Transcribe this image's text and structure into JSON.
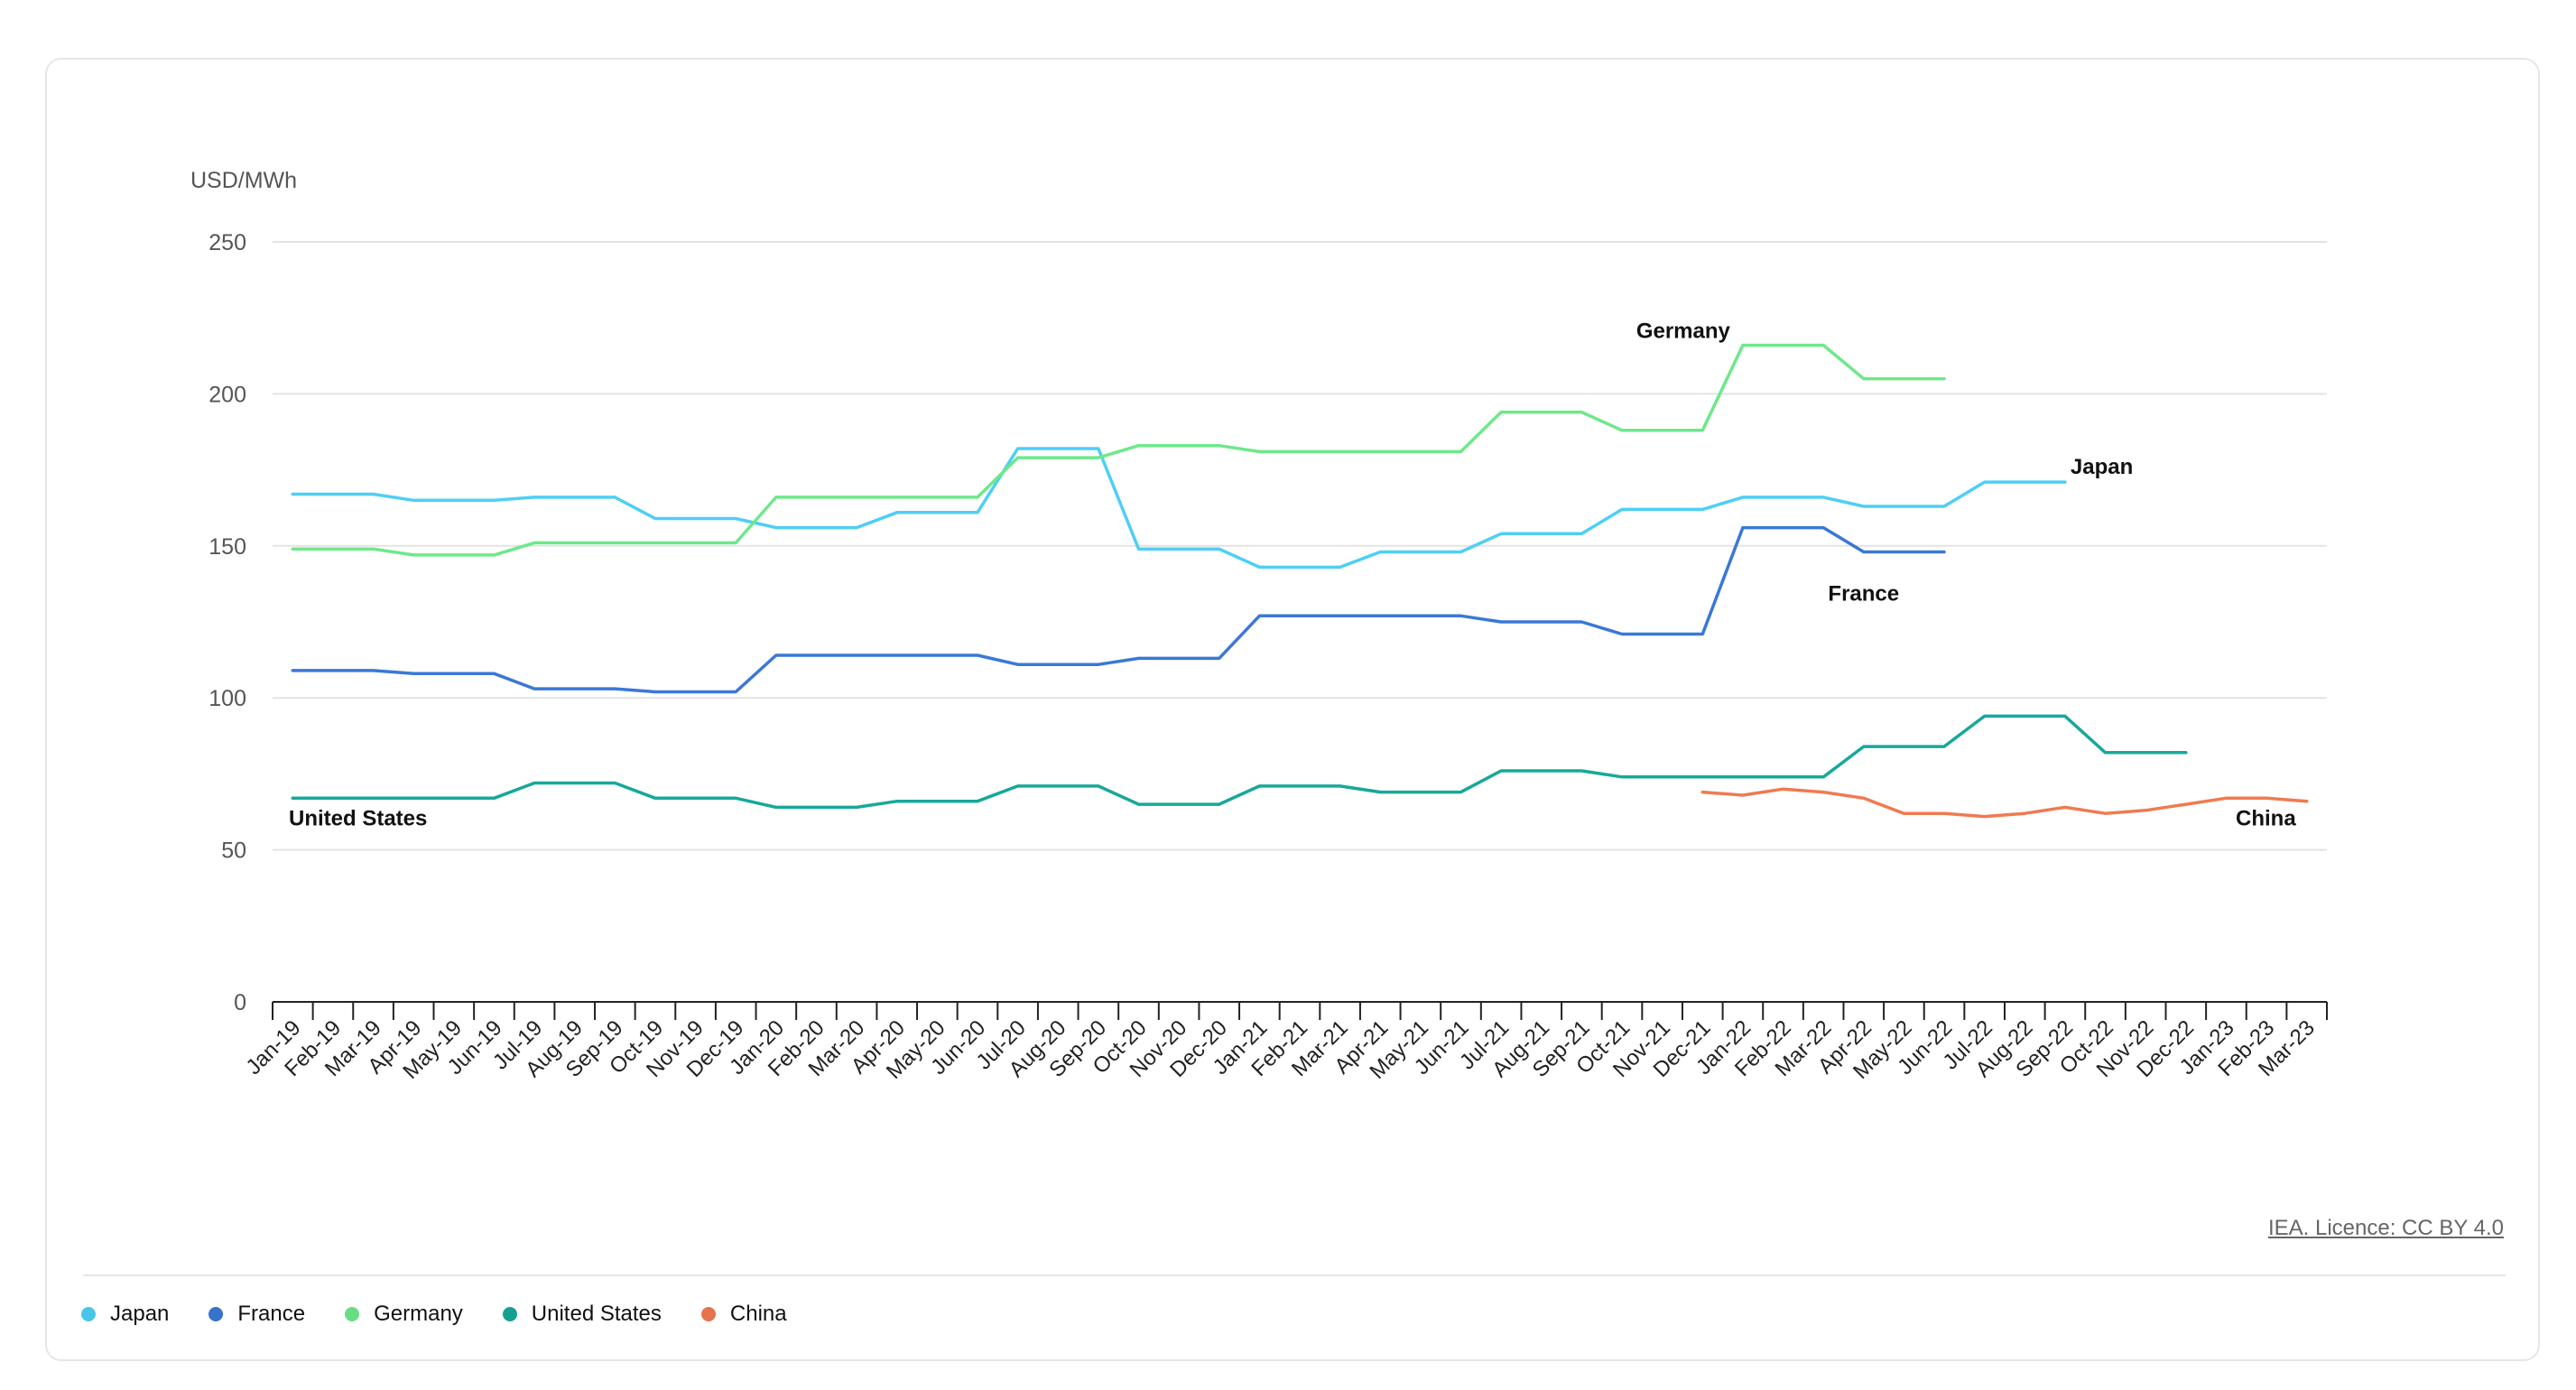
{
  "chart_data": {
    "type": "line",
    "ylabel": "USD/MWh",
    "ylim": [
      0,
      250
    ],
    "yticks": [
      0,
      50,
      100,
      150,
      200,
      250
    ],
    "grid": true,
    "legend_position": "bottom-left",
    "categories": [
      "Jan-19",
      "Feb-19",
      "Mar-19",
      "Apr-19",
      "May-19",
      "Jun-19",
      "Jul-19",
      "Aug-19",
      "Sep-19",
      "Oct-19",
      "Nov-19",
      "Dec-19",
      "Jan-20",
      "Feb-20",
      "Mar-20",
      "Apr-20",
      "May-20",
      "Jun-20",
      "Jul-20",
      "Aug-20",
      "Sep-20",
      "Oct-20",
      "Nov-20",
      "Dec-20",
      "Jan-21",
      "Feb-21",
      "Mar-21",
      "Apr-21",
      "May-21",
      "Jun-21",
      "Jul-21",
      "Aug-21",
      "Sep-21",
      "Oct-21",
      "Nov-21",
      "Dec-21",
      "Jan-22",
      "Feb-22",
      "Mar-22",
      "Apr-22",
      "May-22",
      "Jun-22",
      "Jul-22",
      "Aug-22",
      "Sep-22",
      "Oct-22",
      "Nov-22",
      "Dec-22",
      "Jan-23",
      "Feb-23",
      "Mar-23"
    ],
    "series": [
      {
        "name": "Japan",
        "color": "#4dcff5",
        "values": [
          167,
          167,
          167,
          165,
          165,
          165,
          166,
          166,
          166,
          159,
          159,
          159,
          156,
          156,
          156,
          161,
          161,
          161,
          182,
          182,
          182,
          149,
          149,
          149,
          143,
          143,
          143,
          148,
          148,
          148,
          154,
          154,
          154,
          162,
          162,
          162,
          166,
          166,
          166,
          163,
          163,
          163,
          171,
          171,
          171,
          null,
          null,
          null,
          null,
          null,
          null
        ]
      },
      {
        "name": "France",
        "color": "#3a78d6",
        "values": [
          109,
          109,
          109,
          108,
          108,
          108,
          103,
          103,
          103,
          102,
          102,
          102,
          114,
          114,
          114,
          114,
          114,
          114,
          111,
          111,
          111,
          113,
          113,
          113,
          127,
          127,
          127,
          127,
          127,
          127,
          125,
          125,
          125,
          121,
          121,
          121,
          156,
          156,
          156,
          148,
          148,
          148,
          null,
          null,
          null,
          null,
          null,
          null,
          null,
          null,
          null
        ]
      },
      {
        "name": "Germany",
        "color": "#6ee88a",
        "values": [
          149,
          149,
          149,
          147,
          147,
          147,
          151,
          151,
          151,
          151,
          151,
          151,
          166,
          166,
          166,
          166,
          166,
          166,
          179,
          179,
          179,
          183,
          183,
          183,
          181,
          181,
          181,
          181,
          181,
          181,
          194,
          194,
          194,
          188,
          188,
          188,
          216,
          216,
          216,
          205,
          205,
          205,
          null,
          null,
          null,
          null,
          null,
          null,
          null,
          null,
          null
        ]
      },
      {
        "name": "United States",
        "color": "#17a89a",
        "values": [
          67,
          67,
          67,
          67,
          67,
          67,
          72,
          72,
          72,
          67,
          67,
          67,
          64,
          64,
          64,
          66,
          66,
          66,
          71,
          71,
          71,
          65,
          65,
          65,
          71,
          71,
          71,
          69,
          69,
          69,
          76,
          76,
          76,
          74,
          74,
          74,
          74,
          74,
          74,
          84,
          84,
          84,
          94,
          94,
          94,
          82,
          82,
          82,
          null,
          null,
          null
        ]
      },
      {
        "name": "China",
        "color": "#f07a50",
        "values": [
          null,
          null,
          null,
          null,
          null,
          null,
          null,
          null,
          null,
          null,
          null,
          null,
          null,
          null,
          null,
          null,
          null,
          null,
          null,
          null,
          null,
          null,
          null,
          null,
          null,
          null,
          null,
          null,
          null,
          null,
          null,
          null,
          null,
          null,
          null,
          69,
          68,
          70,
          69,
          67,
          62,
          62,
          61,
          62,
          64,
          62,
          63,
          65,
          67,
          67,
          66
        ]
      }
    ],
    "annotations": [
      {
        "text": "Germany",
        "series": "Germany"
      },
      {
        "text": "Japan",
        "series": "Japan"
      },
      {
        "text": "France",
        "series": "France"
      },
      {
        "text": "United States",
        "series": "United States"
      },
      {
        "text": "China",
        "series": "China"
      }
    ]
  },
  "source_link": "IEA. Licence: CC BY 4.0",
  "legend": [
    {
      "label": "Japan",
      "color": "#4dcff5"
    },
    {
      "label": "France",
      "color": "#3a78d6"
    },
    {
      "label": "Germany",
      "color": "#6ee88a"
    },
    {
      "label": "United States",
      "color": "#17a89a"
    },
    {
      "label": "China",
      "color": "#f07a50"
    }
  ]
}
